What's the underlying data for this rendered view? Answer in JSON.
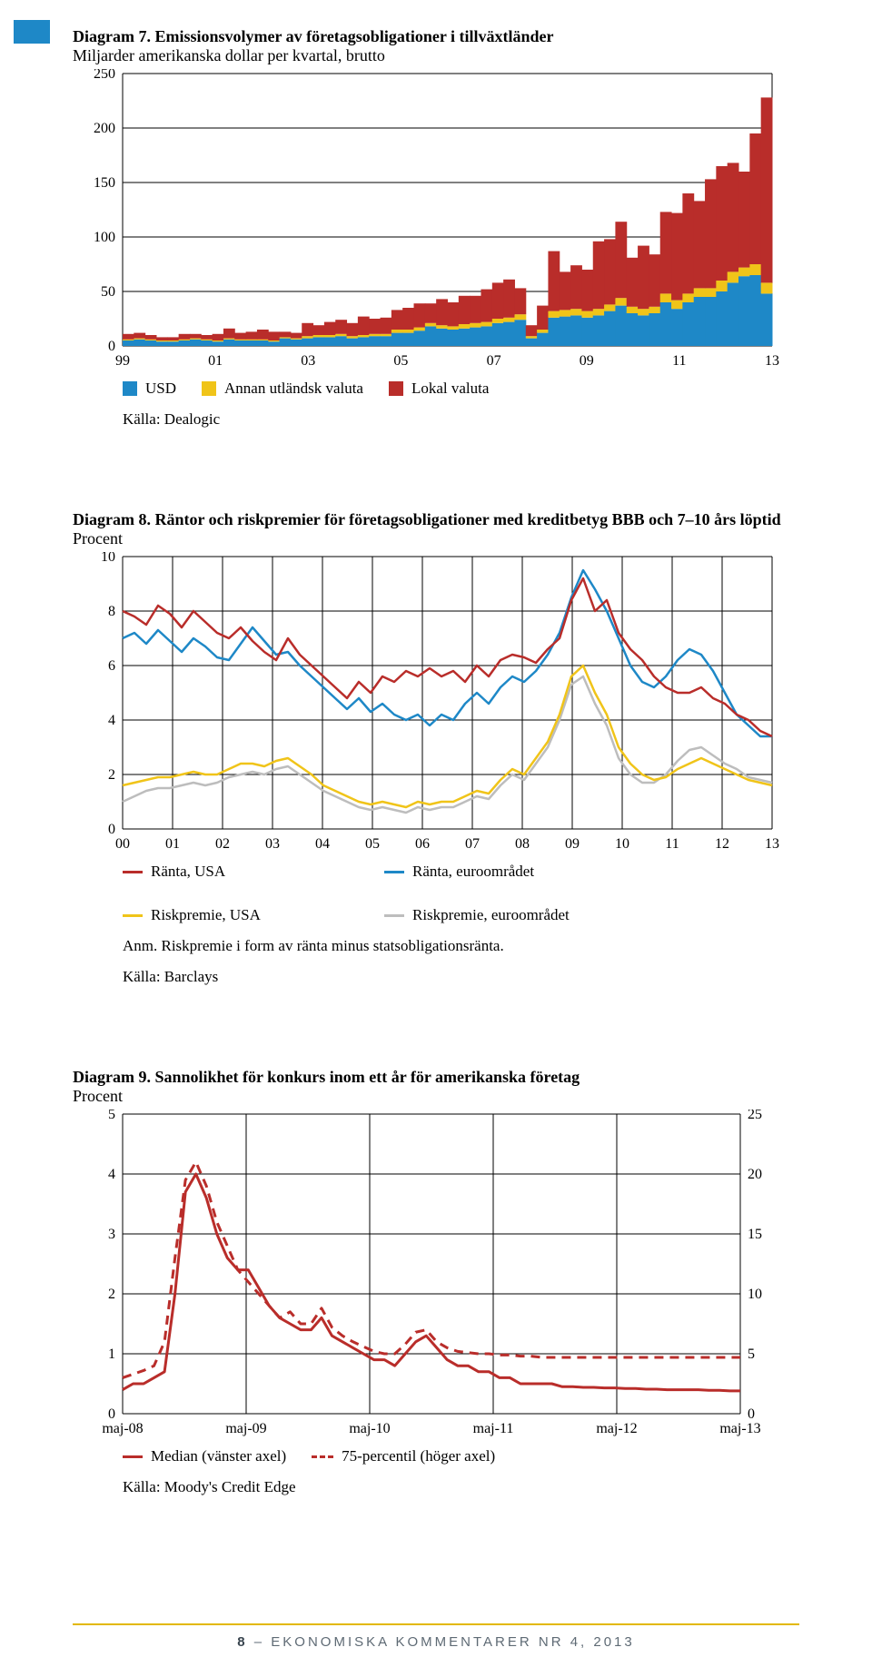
{
  "colors": {
    "blue": "#1e88c7",
    "yellow": "#f0c419",
    "red": "#b92d2a",
    "grey": "#bdbdbd",
    "dark_red_line": "#b92d2a",
    "grid": "#000000",
    "bg": "#ffffff",
    "footer_rule": "#e2b800",
    "footer_text": "#5e6a74"
  },
  "chart7": {
    "type": "stacked-bar",
    "title_bold": "Diagram 7. Emissionsvolymer av företagsobligationer i tillväxtländer",
    "title_sub": "Miljarder amerikanska dollar per kvartal, brutto",
    "ylim": [
      0,
      250
    ],
    "ytick_step": 50,
    "yticks": [
      "0",
      "50",
      "100",
      "150",
      "200",
      "250"
    ],
    "xticks": [
      "99",
      "01",
      "03",
      "05",
      "07",
      "09",
      "11",
      "13"
    ],
    "stacks": [
      [
        5,
        1,
        5
      ],
      [
        6,
        1,
        5
      ],
      [
        5,
        1,
        4
      ],
      [
        4,
        1,
        3
      ],
      [
        4,
        1,
        3
      ],
      [
        5,
        1,
        5
      ],
      [
        6,
        1,
        4
      ],
      [
        5,
        1,
        4
      ],
      [
        4,
        1,
        6
      ],
      [
        6,
        1,
        9
      ],
      [
        5,
        1,
        6
      ],
      [
        5,
        1,
        7
      ],
      [
        5,
        1,
        9
      ],
      [
        4,
        1,
        8
      ],
      [
        7,
        1,
        5
      ],
      [
        6,
        1,
        5
      ],
      [
        7,
        2,
        12
      ],
      [
        8,
        2,
        9
      ],
      [
        8,
        2,
        12
      ],
      [
        9,
        2,
        13
      ],
      [
        7,
        2,
        12
      ],
      [
        8,
        2,
        17
      ],
      [
        9,
        2,
        14
      ],
      [
        9,
        2,
        15
      ],
      [
        12,
        3,
        18
      ],
      [
        12,
        3,
        20
      ],
      [
        14,
        3,
        22
      ],
      [
        18,
        3,
        18
      ],
      [
        16,
        3,
        24
      ],
      [
        15,
        3,
        22
      ],
      [
        16,
        4,
        26
      ],
      [
        17,
        4,
        25
      ],
      [
        18,
        4,
        30
      ],
      [
        21,
        4,
        33
      ],
      [
        22,
        4,
        35
      ],
      [
        24,
        5,
        24
      ],
      [
        7,
        2,
        10
      ],
      [
        12,
        3,
        22
      ],
      [
        26,
        6,
        55
      ],
      [
        27,
        6,
        35
      ],
      [
        28,
        6,
        40
      ],
      [
        26,
        6,
        38
      ],
      [
        28,
        6,
        62
      ],
      [
        32,
        6,
        60
      ],
      [
        37,
        7,
        70
      ],
      [
        30,
        6,
        45
      ],
      [
        28,
        6,
        58
      ],
      [
        30,
        6,
        48
      ],
      [
        40,
        8,
        75
      ],
      [
        34,
        8,
        80
      ],
      [
        40,
        8,
        92
      ],
      [
        45,
        8,
        80
      ],
      [
        45,
        8,
        100
      ],
      [
        50,
        10,
        105
      ],
      [
        58,
        10,
        100
      ],
      [
        64,
        8,
        88
      ],
      [
        65,
        10,
        120
      ],
      [
        48,
        10,
        170
      ]
    ],
    "legend": [
      {
        "color": "#1e88c7",
        "label": "USD"
      },
      {
        "color": "#f0c419",
        "label": "Annan utländsk valuta"
      },
      {
        "color": "#b92d2a",
        "label": "Lokal valuta"
      }
    ],
    "source": "Källa: Dealogic"
  },
  "chart8": {
    "type": "line",
    "title_bold": "Diagram 8. Räntor och riskpremier för företagsobligationer med kreditbetyg BBB och 7–10 års löptid",
    "title_sub": "Procent",
    "ylim": [
      0,
      10
    ],
    "ytick_step": 2,
    "yticks": [
      "0",
      "2",
      "4",
      "6",
      "8",
      "10"
    ],
    "xticks": [
      "00",
      "01",
      "02",
      "03",
      "04",
      "05",
      "06",
      "07",
      "08",
      "09",
      "10",
      "11",
      "12",
      "13"
    ],
    "series": {
      "ranta_usa": {
        "color": "#b92d2a",
        "values": [
          8.0,
          7.8,
          7.5,
          8.2,
          7.9,
          7.4,
          8.0,
          7.6,
          7.2,
          7.0,
          7.4,
          6.9,
          6.5,
          6.2,
          7.0,
          6.4,
          6.0,
          5.6,
          5.2,
          4.8,
          5.4,
          5.0,
          5.6,
          5.4,
          5.8,
          5.6,
          5.9,
          5.6,
          5.8,
          5.4,
          6.0,
          5.6,
          6.2,
          6.4,
          6.3,
          6.1,
          6.6,
          7.0,
          8.4,
          9.2,
          8.0,
          8.4,
          7.2,
          6.6,
          6.2,
          5.6,
          5.2,
          5.0,
          5.0,
          5.2,
          4.8,
          4.6,
          4.2,
          4.0,
          3.6,
          3.4
        ]
      },
      "ranta_euro": {
        "color": "#1e88c7",
        "values": [
          7.0,
          7.2,
          6.8,
          7.3,
          6.9,
          6.5,
          7.0,
          6.7,
          6.3,
          6.2,
          6.8,
          7.4,
          6.9,
          6.4,
          6.5,
          6.0,
          5.6,
          5.2,
          4.8,
          4.4,
          4.8,
          4.3,
          4.6,
          4.2,
          4.0,
          4.2,
          3.8,
          4.2,
          4.0,
          4.6,
          5.0,
          4.6,
          5.2,
          5.6,
          5.4,
          5.8,
          6.4,
          7.2,
          8.5,
          9.5,
          8.8,
          8.0,
          7.0,
          6.0,
          5.4,
          5.2,
          5.6,
          6.2,
          6.6,
          6.4,
          5.8,
          5.0,
          4.2,
          3.8,
          3.4,
          3.4
        ]
      },
      "risk_usa": {
        "color": "#f0c419",
        "values": [
          1.6,
          1.7,
          1.8,
          1.9,
          1.9,
          2.0,
          2.1,
          2.0,
          2.0,
          2.2,
          2.4,
          2.4,
          2.3,
          2.5,
          2.6,
          2.3,
          2.0,
          1.6,
          1.4,
          1.2,
          1.0,
          0.9,
          1.0,
          0.9,
          0.8,
          1.0,
          0.9,
          1.0,
          1.0,
          1.2,
          1.4,
          1.3,
          1.8,
          2.2,
          2.0,
          2.6,
          3.2,
          4.2,
          5.6,
          6.0,
          5.0,
          4.2,
          3.0,
          2.4,
          2.0,
          1.8,
          1.9,
          2.2,
          2.4,
          2.6,
          2.4,
          2.2,
          2.0,
          1.8,
          1.7,
          1.6
        ]
      },
      "risk_euro": {
        "color": "#bdbdbd",
        "values": [
          1.0,
          1.2,
          1.4,
          1.5,
          1.5,
          1.6,
          1.7,
          1.6,
          1.7,
          1.9,
          2.0,
          2.1,
          2.0,
          2.2,
          2.3,
          2.0,
          1.7,
          1.4,
          1.2,
          1.0,
          0.8,
          0.7,
          0.8,
          0.7,
          0.6,
          0.8,
          0.7,
          0.8,
          0.8,
          1.0,
          1.2,
          1.1,
          1.6,
          2.0,
          1.8,
          2.4,
          3.0,
          4.0,
          5.3,
          5.6,
          4.6,
          3.8,
          2.6,
          2.0,
          1.7,
          1.7,
          2.0,
          2.5,
          2.9,
          3.0,
          2.7,
          2.4,
          2.2,
          1.9,
          1.8,
          1.7
        ]
      }
    },
    "legend": [
      {
        "color": "#b92d2a",
        "label": "Ränta, USA"
      },
      {
        "color": "#1e88c7",
        "label": "Ränta, euroområdet"
      },
      {
        "color": "#f0c419",
        "label": "Riskpremie, USA"
      },
      {
        "color": "#bdbdbd",
        "label": "Riskpremie, euroområdet"
      }
    ],
    "note": "Anm. Riskpremie i form av ränta minus statsobligationsränta.",
    "source": "Källa: Barclays"
  },
  "chart9": {
    "type": "dual-axis-line",
    "title_bold": "Diagram 9. Sannolikhet för konkurs inom ett år för amerikanska företag",
    "title_sub": "Procent",
    "ylim_left": [
      0,
      5
    ],
    "ytick_left": 1,
    "yticks_left": [
      "0",
      "1",
      "2",
      "3",
      "4",
      "5"
    ],
    "ylim_right": [
      0,
      25
    ],
    "ytick_right": 5,
    "yticks_right": [
      "0",
      "5",
      "10",
      "15",
      "20",
      "25"
    ],
    "xticks": [
      "maj-08",
      "maj-09",
      "maj-10",
      "maj-11",
      "maj-12",
      "maj-13"
    ],
    "series": {
      "median": {
        "color": "#b92d2a",
        "dash": false,
        "axis": "left",
        "values": [
          0.4,
          0.5,
          0.5,
          0.6,
          0.7,
          2.0,
          3.7,
          4.0,
          3.6,
          3.0,
          2.6,
          2.4,
          2.4,
          2.1,
          1.8,
          1.6,
          1.5,
          1.4,
          1.4,
          1.6,
          1.3,
          1.2,
          1.1,
          1.0,
          0.9,
          0.9,
          0.8,
          1.0,
          1.2,
          1.3,
          1.1,
          0.9,
          0.8,
          0.8,
          0.7,
          0.7,
          0.6,
          0.6,
          0.5,
          0.5,
          0.5,
          0.5,
          0.45,
          0.45,
          0.44,
          0.44,
          0.43,
          0.43,
          0.42,
          0.42,
          0.41,
          0.41,
          0.4,
          0.4,
          0.4,
          0.4,
          0.39,
          0.39,
          0.38,
          0.38
        ]
      },
      "p75": {
        "color": "#b92d2a",
        "dash": true,
        "axis": "right",
        "values": [
          3.0,
          3.3,
          3.6,
          4.0,
          6.0,
          13.0,
          19.5,
          21.0,
          19.0,
          16.0,
          14.0,
          12.0,
          11.0,
          10.0,
          9.0,
          8.0,
          8.5,
          7.5,
          7.5,
          8.8,
          7.2,
          6.5,
          6.0,
          5.6,
          5.2,
          5.0,
          5.0,
          5.8,
          6.8,
          7.0,
          6.0,
          5.5,
          5.2,
          5.1,
          5.0,
          5.0,
          4.9,
          4.9,
          4.8,
          4.8,
          4.7,
          4.7,
          4.7,
          4.7,
          4.7,
          4.7,
          4.7,
          4.7,
          4.7,
          4.7,
          4.7,
          4.7,
          4.7,
          4.7,
          4.7,
          4.7,
          4.7,
          4.7,
          4.7,
          4.7
        ]
      }
    },
    "legend": [
      {
        "color": "#b92d2a",
        "dash": false,
        "label": "Median (vänster axel)"
      },
      {
        "color": "#b92d2a",
        "dash": true,
        "label": "75-percentil (höger axel)"
      }
    ],
    "source": "Källa: Moody's Credit Edge"
  },
  "footer": {
    "page": "8",
    "sep": " – ",
    "text": "EKONOMISKA KOMMENTARER NR 4, 2013"
  }
}
